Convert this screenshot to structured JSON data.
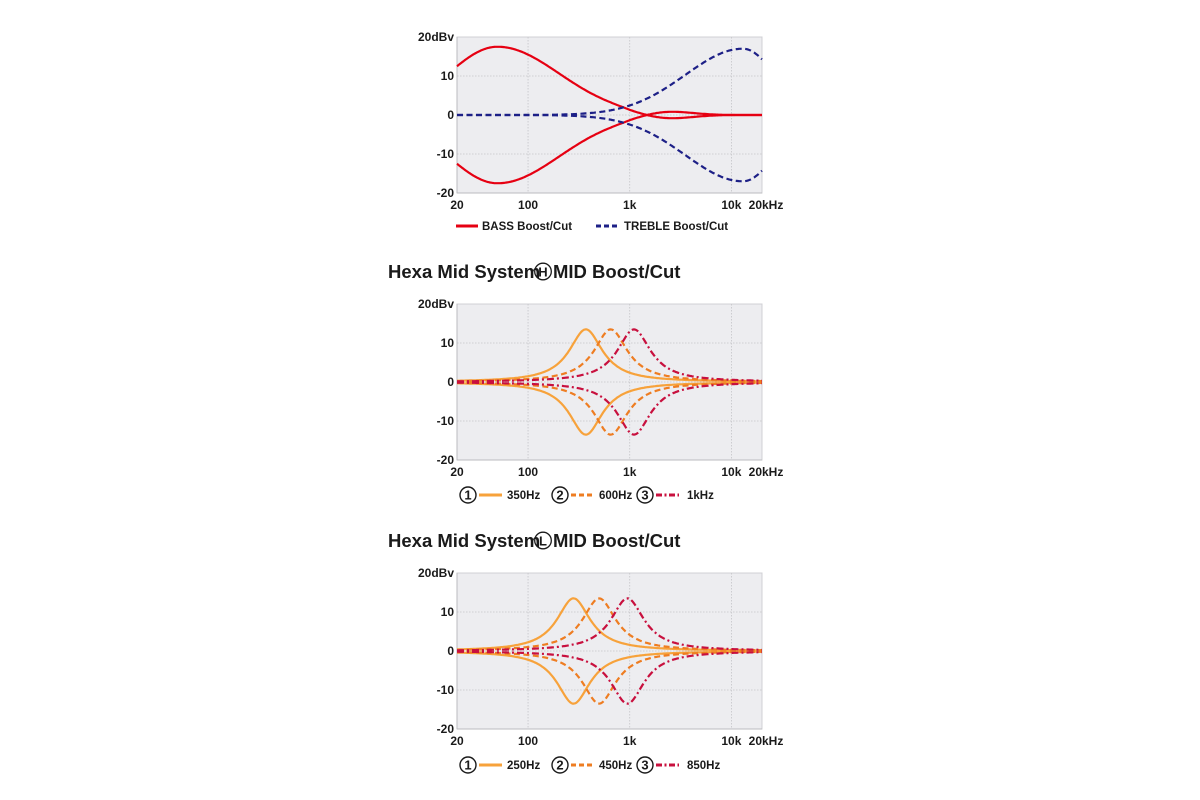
{
  "colors": {
    "plot_bg": "#ededf0",
    "grid": "#c4c4c8",
    "bass": "#e60012",
    "treble": "#1d2087",
    "mid1": "#f7a23b",
    "mid2": "#ee7d22",
    "mid3": "#c8103e"
  },
  "chart_data": [
    {
      "type": "line",
      "title": "",
      "xscale": "log",
      "xlim": [
        20,
        20000
      ],
      "ylim": [
        -20,
        20
      ],
      "ylabel": "20dBv",
      "yticks": [
        "20dBv",
        "10",
        "0",
        "-10",
        "-20"
      ],
      "ytick_values": [
        20,
        10,
        0,
        -10,
        -20
      ],
      "xticks": [
        "20",
        "100",
        "1k",
        "10k",
        "20kHz"
      ],
      "xtick_values": [
        20,
        100,
        1000,
        10000,
        20000
      ],
      "grid": true,
      "legend": "bottom",
      "series": [
        {
          "name": "BASS Boost/Cut",
          "style": "solid",
          "color_key": "bass",
          "kind": "low_shelf",
          "peak_freq_hz": 50,
          "peak_db": 17.5,
          "db_at_20hz": 12.5,
          "curves": [
            "boost",
            "cut"
          ]
        },
        {
          "name": "TREBLE Boost/Cut",
          "style": "dashed",
          "color_key": "treble",
          "kind": "high_shelf",
          "peak_freq_hz": 13000,
          "peak_db": 17,
          "db_at_20khz": 16,
          "curves": [
            "boost",
            "cut"
          ]
        }
      ]
    },
    {
      "type": "line",
      "title": "Hexa Mid System",
      "title_badge": "H",
      "title_suffix": "MID Boost/Cut",
      "xscale": "log",
      "xlim": [
        20,
        20000
      ],
      "ylim": [
        -20,
        20
      ],
      "yticks": [
        "20dBv",
        "10",
        "0",
        "-10",
        "-20"
      ],
      "ytick_values": [
        20,
        10,
        0,
        -10,
        -20
      ],
      "xticks": [
        "20",
        "100",
        "1k",
        "10k",
        "20kHz"
      ],
      "xtick_values": [
        20,
        100,
        1000,
        10000,
        20000
      ],
      "grid": true,
      "legend": "bottom",
      "series": [
        {
          "num": "1",
          "name": "350Hz",
          "style": "solid",
          "color_key": "mid1",
          "kind": "peak",
          "peak_freq_hz": 370,
          "peak_db": 13.5,
          "curves": [
            "boost",
            "cut"
          ]
        },
        {
          "num": "2",
          "name": "600Hz",
          "style": "dashed",
          "color_key": "mid2",
          "kind": "peak",
          "peak_freq_hz": 650,
          "peak_db": 13.5,
          "curves": [
            "boost",
            "cut"
          ]
        },
        {
          "num": "3",
          "name": "1kHz",
          "style": "dashdot",
          "color_key": "mid3",
          "kind": "peak",
          "peak_freq_hz": 1100,
          "peak_db": 13.5,
          "curves": [
            "boost",
            "cut"
          ]
        }
      ]
    },
    {
      "type": "line",
      "title": "Hexa Mid System",
      "title_badge": "L",
      "title_suffix": "MID Boost/Cut",
      "xscale": "log",
      "xlim": [
        20,
        20000
      ],
      "ylim": [
        -20,
        20
      ],
      "yticks": [
        "20dBv",
        "10",
        "0",
        "-10",
        "-20"
      ],
      "ytick_values": [
        20,
        10,
        0,
        -10,
        -20
      ],
      "xticks": [
        "20",
        "100",
        "1k",
        "10k",
        "20kHz"
      ],
      "xtick_values": [
        20,
        100,
        1000,
        10000,
        20000
      ],
      "grid": true,
      "legend": "bottom",
      "series": [
        {
          "num": "1",
          "name": "250Hz",
          "style": "solid",
          "color_key": "mid1",
          "kind": "peak",
          "peak_freq_hz": 280,
          "peak_db": 13.5,
          "curves": [
            "boost",
            "cut"
          ]
        },
        {
          "num": "2",
          "name": "450Hz",
          "style": "dashed",
          "color_key": "mid2",
          "kind": "peak",
          "peak_freq_hz": 500,
          "peak_db": 13.5,
          "curves": [
            "boost",
            "cut"
          ]
        },
        {
          "num": "3",
          "name": "850Hz",
          "style": "dashdot",
          "color_key": "mid3",
          "kind": "peak",
          "peak_freq_hz": 950,
          "peak_db": 13.5,
          "curves": [
            "boost",
            "cut"
          ]
        }
      ]
    }
  ]
}
